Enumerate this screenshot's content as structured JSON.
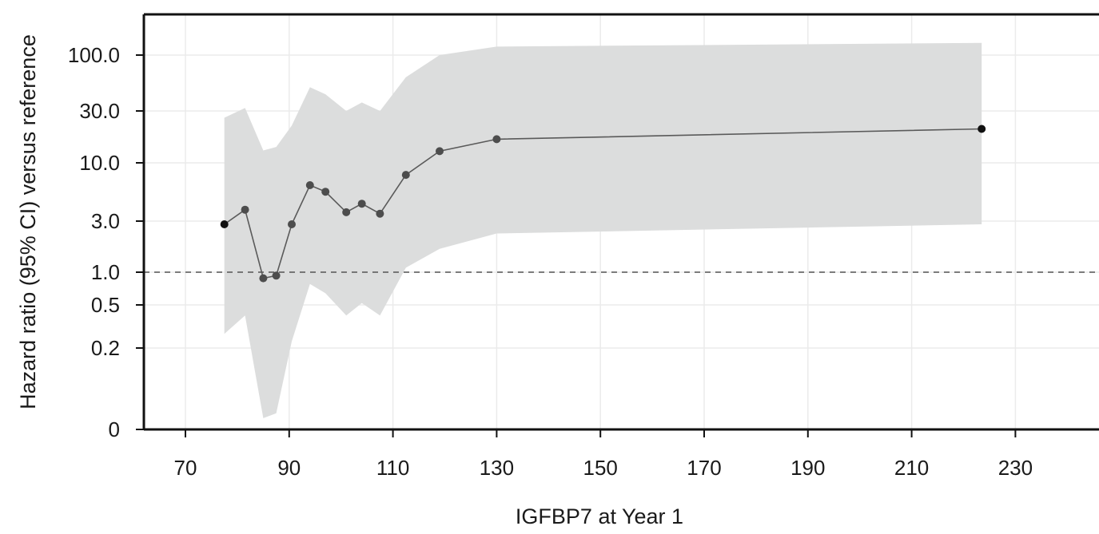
{
  "chart_data": {
    "type": "line",
    "title": "",
    "xlabel": "IGFBP7 at Year 1",
    "ylabel": "Hazard ratio (95% CI) versus reference",
    "x_ticks": [
      70,
      90,
      110,
      130,
      150,
      170,
      190,
      210,
      230
    ],
    "xlim": [
      62,
      246
    ],
    "y_scale": "log-like (pseudo-log)",
    "y_ticks": [
      0,
      0.2,
      0.5,
      1.0,
      3.0,
      10.0,
      30.0,
      100.0
    ],
    "y_tick_labels": [
      "0",
      "0.2",
      "0.5",
      "1.0",
      "3.0",
      "10.0",
      "30.0",
      "100.0"
    ],
    "ylim": [
      0,
      200
    ],
    "grid": true,
    "reference_line": {
      "y": 1.0,
      "style": "dashed"
    },
    "series": [
      {
        "x": [
          77.5,
          81.5,
          85,
          87.5,
          90.5,
          94,
          97,
          101,
          104,
          107.5,
          112.5,
          119,
          130,
          223.5
        ],
        "values": [
          2.8,
          3.8,
          0.88,
          0.93,
          2.8,
          6.3,
          5.5,
          3.6,
          4.3,
          3.5,
          7.8,
          12.8,
          16.5,
          20.5
        ],
        "ci_upper": [
          26,
          32,
          13,
          14,
          22,
          50,
          43,
          30,
          36,
          30,
          62,
          100,
          120,
          130
        ],
        "ci_lower": [
          0.27,
          0.4,
          0.045,
          0.05,
          0.23,
          0.78,
          0.64,
          0.4,
          0.52,
          0.4,
          1.1,
          1.65,
          2.3,
          2.8
        ]
      }
    ]
  },
  "colors": {
    "band": "#dcdddd",
    "line": "#5a5a5a",
    "marker": "#4d4d4d",
    "axis": "#111111",
    "grid": "#ebebeb"
  }
}
